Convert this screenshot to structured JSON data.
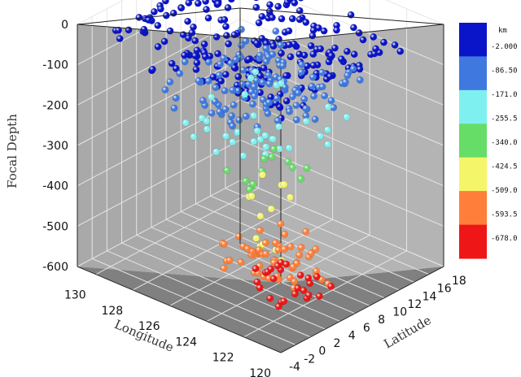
{
  "chart_data": {
    "type": "scatter3d",
    "title": "",
    "axes": {
      "x": {
        "label": "Longitude",
        "range": [
          120,
          131
        ],
        "ticks": [
          "120",
          "122",
          "124",
          "126",
          "128",
          "130"
        ]
      },
      "y": {
        "label": "Latitude",
        "range": [
          -4,
          18
        ],
        "ticks": [
          "-4",
          "-2",
          "0",
          "2",
          "4",
          "6",
          "8",
          "10",
          "12",
          "14",
          "16",
          "18"
        ]
      },
      "z": {
        "label": "Focal Depth",
        "range": [
          -600,
          0
        ],
        "ticks": [
          "0",
          "-100",
          "-200",
          "-300",
          "-400",
          "-500",
          "-600"
        ]
      }
    },
    "grid": true,
    "colorbar": {
      "title": "km",
      "placement": "right",
      "labels": [
        "-2.000",
        "-86.50",
        "-171.0",
        "-255.5",
        "-340.0",
        "-424.5",
        "-509.0",
        "-593.5",
        "-678.0"
      ],
      "colors": [
        "#0a14c8",
        "#3f79e0",
        "#7ff0f0",
        "#66dd66",
        "#f5f56a",
        "#ff7f3a",
        "#ee1616"
      ]
    },
    "clusters": [
      {
        "depth": [
          -60,
          0
        ],
        "lon": [
          120.5,
          130.5
        ],
        "lat": [
          -2,
          15
        ],
        "count": 210
      },
      {
        "depth": [
          -160,
          -70
        ],
        "lon": [
          122,
          128.5
        ],
        "lat": [
          -1,
          13
        ],
        "count": 120
      },
      {
        "depth": [
          -260,
          -150
        ],
        "lon": [
          122.5,
          128
        ],
        "lat": [
          0,
          12
        ],
        "count": 55
      },
      {
        "depth": [
          -340,
          -250
        ],
        "lon": [
          123.5,
          126
        ],
        "lat": [
          1,
          8
        ],
        "count": 14
      },
      {
        "depth": [
          -430,
          -330
        ],
        "lon": [
          123.5,
          126
        ],
        "lat": [
          2,
          9
        ],
        "count": 12
      },
      {
        "depth": [
          -560,
          -470
        ],
        "lon": [
          122.5,
          126
        ],
        "lat": [
          2,
          9
        ],
        "count": 45
      },
      {
        "depth": [
          -620,
          -560
        ],
        "lon": [
          122,
          125.5
        ],
        "lat": [
          3,
          9
        ],
        "count": 40
      }
    ],
    "extra_points": [
      {
        "lon": 130.8,
        "lat": 15.5,
        "depth": -8
      }
    ]
  }
}
